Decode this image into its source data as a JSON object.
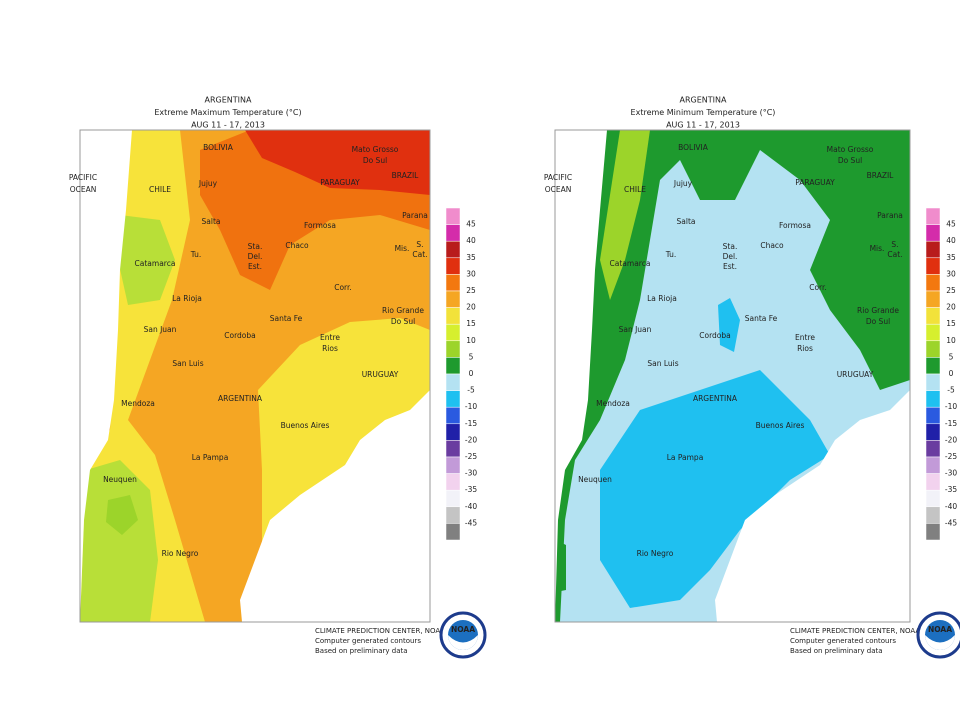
{
  "maps": [
    {
      "title": [
        "ARGENTINA",
        "Extreme Maximum Temperature (°C)",
        "AUG 11 - 17, 2013"
      ],
      "labels": [
        "PACIFIC",
        "OCEAN",
        "CHILE",
        "BOLIVIA",
        "Mato Grosso",
        "Do Sul",
        "PARAGUAY",
        "BRAZIL",
        "Jujuy",
        "Salta",
        "Formosa",
        "Parana",
        "Tu.",
        "Sta.",
        "Del.",
        "Est.",
        "Chaco",
        "Mis.",
        "S.",
        "Cat.",
        "Catamarca",
        "La Rioja",
        "Corr.",
        "Rio Grande",
        "Do Sul",
        "San Juan",
        "Santa Fe",
        "Cordoba",
        "Entre",
        "Rios",
        "URUGUAY",
        "San Luis",
        "Mendoza",
        "ARGENTINA",
        "Buenos Aires",
        "La Pampa",
        "Neuquen",
        "Rio Negro"
      ],
      "footer": [
        "CLIMATE PREDICTION CENTER, NOAA",
        "Computer generated contours",
        "Based on preliminary data"
      ],
      "logo": "NOAA"
    },
    {
      "title": [
        "ARGENTINA",
        "Extreme Minimum Temperature (°C)",
        "AUG 11 - 17, 2013"
      ],
      "labels": [
        "PACIFIC",
        "OCEAN",
        "CHILE",
        "BOLIVIA",
        "Mato Grosso",
        "Do Sul",
        "PARAGUAY",
        "BRAZIL",
        "Jujuy",
        "Salta",
        "Formosa",
        "Parana",
        "Tu.",
        "Sta.",
        "Del.",
        "Est.",
        "Chaco",
        "Mis.",
        "S.",
        "Cat.",
        "Catamarca",
        "La Rioja",
        "Corr.",
        "Rio Grande",
        "Do Sul",
        "San Juan",
        "Santa Fe",
        "Cordoba",
        "Entre",
        "Rios",
        "URUGUAY",
        "San Luis",
        "Mendoza",
        "ARGENTINA",
        "Buenos Aires",
        "La Pampa",
        "Neuquen",
        "Rio Negro"
      ],
      "footer": [
        "CLIMATE PREDICTION CENTER, NOAA",
        "Computer generated contours",
        "Based on preliminary data"
      ],
      "logo": "NOAA"
    }
  ],
  "legend": {
    "labels": [
      "45",
      "40",
      "35",
      "30",
      "25",
      "20",
      "15",
      "10",
      "5",
      "0",
      "-5",
      "-10",
      "-15",
      "-20",
      "-25",
      "-30",
      "-35",
      "-40",
      "-45"
    ],
    "colors": [
      "#f08ccc",
      "#d42caa",
      "#b81c1c",
      "#e0300f",
      "#f3780f",
      "#f5a623",
      "#f2e23a",
      "#d6ef2e",
      "#9cd42a",
      "#1e9a2e",
      "#b4e2f2",
      "#1fc0f0",
      "#2a5ae0",
      "#2020a8",
      "#6a3ca0",
      "#c29ad8",
      "#f2d2ee",
      "#f2f2f8",
      "#c4c4c4",
      "#808080"
    ]
  }
}
